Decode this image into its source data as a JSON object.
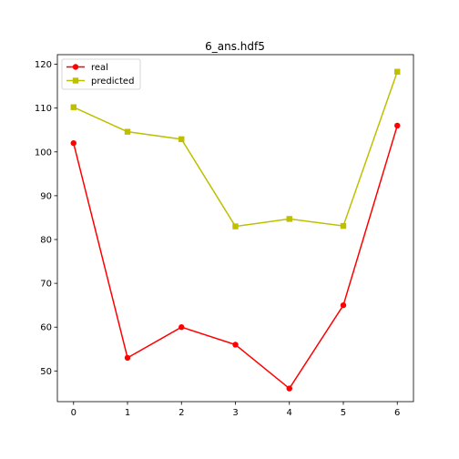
{
  "chart_data": {
    "type": "line",
    "title": "6_ans.hdf5",
    "xlabel": "",
    "ylabel": "",
    "x": [
      0,
      1,
      2,
      3,
      4,
      5,
      6
    ],
    "xticks": [
      0,
      1,
      2,
      3,
      4,
      5,
      6
    ],
    "yticks": [
      50,
      60,
      70,
      80,
      90,
      100,
      110,
      120
    ],
    "xlim": [
      -0.3,
      6.3
    ],
    "ylim": [
      43,
      122.2
    ],
    "grid": false,
    "legend_position": "top-left",
    "series": [
      {
        "name": "real",
        "values": [
          102,
          53,
          60,
          56,
          46,
          65,
          106
        ],
        "color": "#ff0000",
        "marker": "circle"
      },
      {
        "name": "predicted",
        "values": [
          110.2,
          104.6,
          102.9,
          83.0,
          84.7,
          83.1,
          118.3
        ],
        "color": "#bfbf00",
        "marker": "square"
      }
    ]
  }
}
